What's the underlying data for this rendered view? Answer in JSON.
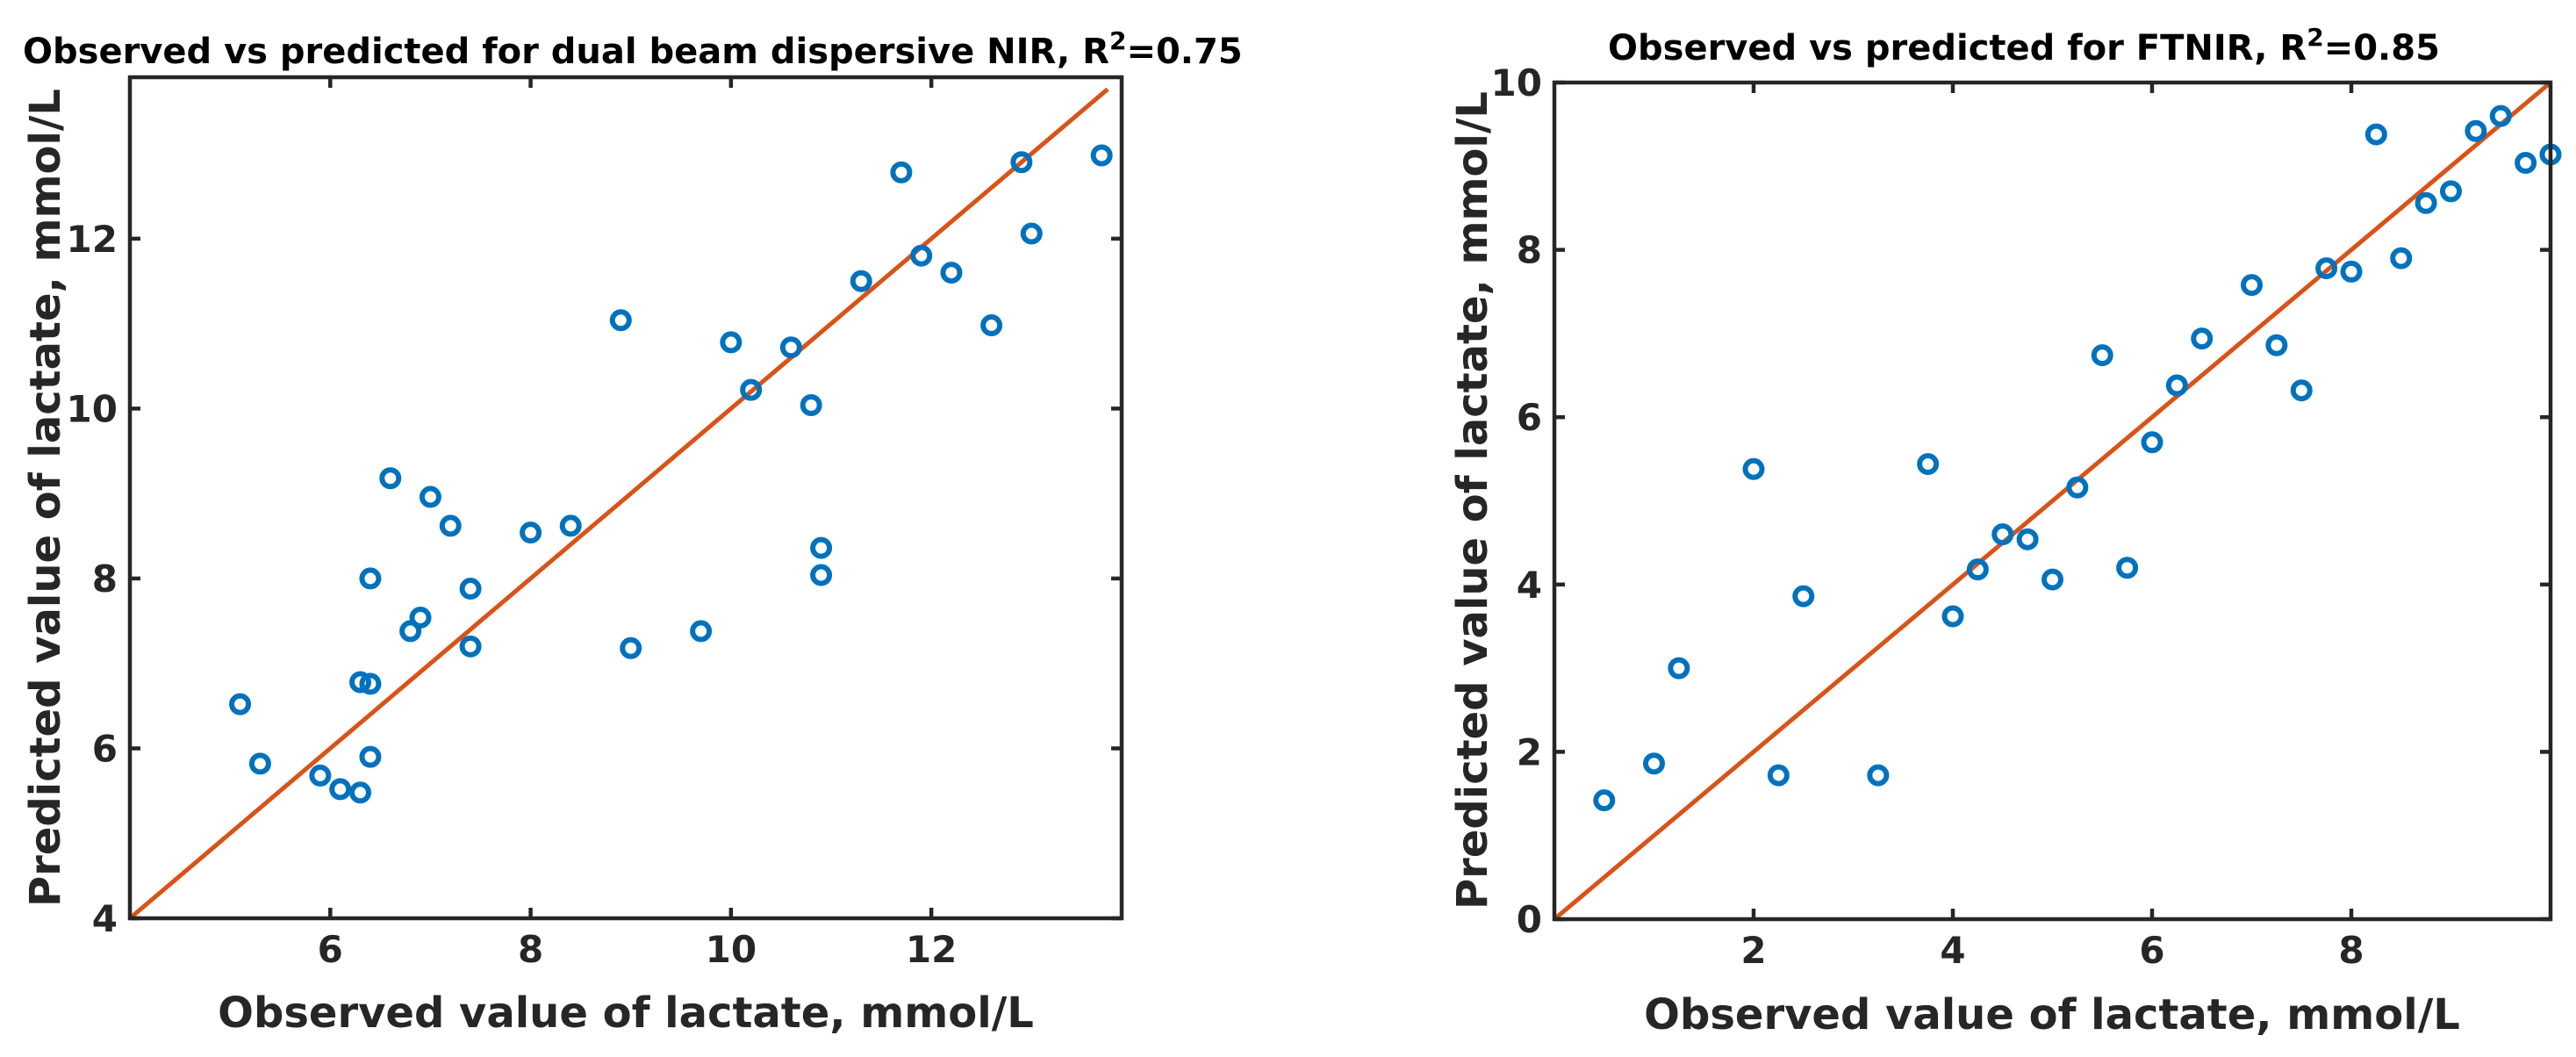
{
  "chart_data": [
    {
      "type": "scatter",
      "title_main": "Observed vs predicted for dual beam dispersive NIR,  R",
      "title_sup": "2",
      "title_tail": "=0.75",
      "xlabel": "Observed value of lactate, mmol/L",
      "ylabel": "Predicted value of lactate, mmol/L",
      "xlim": [
        4,
        13.9
      ],
      "ylim": [
        4,
        13.9
      ],
      "xticks": [
        6,
        8,
        10,
        12
      ],
      "yticks": [
        4,
        6,
        8,
        10,
        12
      ],
      "xtick_labels": [
        "6",
        "8",
        "10",
        "12"
      ],
      "ytick_labels": [
        "4",
        "6",
        "8",
        "10",
        "12"
      ],
      "line": {
        "x": [
          4,
          13.76
        ],
        "y": [
          4,
          13.76
        ]
      },
      "points": [
        {
          "x": 5.1,
          "y": 6.52
        },
        {
          "x": 5.3,
          "y": 5.82
        },
        {
          "x": 5.9,
          "y": 5.68
        },
        {
          "x": 6.1,
          "y": 5.52
        },
        {
          "x": 6.3,
          "y": 5.48
        },
        {
          "x": 6.4,
          "y": 5.9
        },
        {
          "x": 6.3,
          "y": 6.78
        },
        {
          "x": 6.4,
          "y": 6.76
        },
        {
          "x": 6.4,
          "y": 8.0
        },
        {
          "x": 6.6,
          "y": 9.18
        },
        {
          "x": 6.8,
          "y": 7.38
        },
        {
          "x": 6.9,
          "y": 7.54
        },
        {
          "x": 7.0,
          "y": 8.96
        },
        {
          "x": 7.2,
          "y": 8.62
        },
        {
          "x": 7.4,
          "y": 7.88
        },
        {
          "x": 7.4,
          "y": 7.2
        },
        {
          "x": 8.0,
          "y": 8.54
        },
        {
          "x": 8.4,
          "y": 8.62
        },
        {
          "x": 8.9,
          "y": 11.04
        },
        {
          "x": 9.0,
          "y": 7.18
        },
        {
          "x": 9.7,
          "y": 7.38
        },
        {
          "x": 10.0,
          "y": 10.78
        },
        {
          "x": 10.2,
          "y": 10.22
        },
        {
          "x": 10.6,
          "y": 10.72
        },
        {
          "x": 10.8,
          "y": 10.04
        },
        {
          "x": 10.9,
          "y": 8.36
        },
        {
          "x": 10.9,
          "y": 8.04
        },
        {
          "x": 11.3,
          "y": 11.5
        },
        {
          "x": 11.7,
          "y": 12.78
        },
        {
          "x": 11.9,
          "y": 11.8
        },
        {
          "x": 12.2,
          "y": 11.6
        },
        {
          "x": 12.6,
          "y": 10.98
        },
        {
          "x": 12.9,
          "y": 12.9
        },
        {
          "x": 13.0,
          "y": 12.06
        },
        {
          "x": 13.7,
          "y": 12.98
        }
      ]
    },
    {
      "type": "scatter",
      "title_main": "Observed vs predicted for FTNIR,  R",
      "title_sup": "2",
      "title_tail": "=0.85",
      "xlabel": "Observed value of lactate, mmol/L",
      "ylabel": "Predicted value of lactate, mmol/L",
      "xlim": [
        0,
        10
      ],
      "ylim": [
        0,
        10
      ],
      "xticks": [
        2,
        4,
        6,
        8
      ],
      "yticks": [
        0,
        2,
        4,
        6,
        8,
        10
      ],
      "xtick_labels": [
        "2",
        "4",
        "6",
        "8"
      ],
      "ytick_labels": [
        "0",
        "2",
        "4",
        "6",
        "8",
        "10"
      ],
      "line": {
        "x": [
          0,
          10
        ],
        "y": [
          0,
          10
        ]
      },
      "points": [
        {
          "x": 0.5,
          "y": 1.42
        },
        {
          "x": 1.0,
          "y": 1.86
        },
        {
          "x": 1.25,
          "y": 3.0
        },
        {
          "x": 2.0,
          "y": 5.38
        },
        {
          "x": 2.25,
          "y": 1.72
        },
        {
          "x": 2.5,
          "y": 3.86
        },
        {
          "x": 3.25,
          "y": 1.72
        },
        {
          "x": 3.75,
          "y": 5.44
        },
        {
          "x": 4.0,
          "y": 3.62
        },
        {
          "x": 4.25,
          "y": 4.18
        },
        {
          "x": 4.5,
          "y": 4.6
        },
        {
          "x": 4.75,
          "y": 4.54
        },
        {
          "x": 5.0,
          "y": 4.06
        },
        {
          "x": 5.25,
          "y": 5.16
        },
        {
          "x": 5.5,
          "y": 6.74
        },
        {
          "x": 5.75,
          "y": 4.2
        },
        {
          "x": 6.0,
          "y": 5.7
        },
        {
          "x": 6.25,
          "y": 6.38
        },
        {
          "x": 6.5,
          "y": 6.94
        },
        {
          "x": 7.0,
          "y": 7.58
        },
        {
          "x": 7.25,
          "y": 6.86
        },
        {
          "x": 7.5,
          "y": 6.32
        },
        {
          "x": 7.75,
          "y": 7.78
        },
        {
          "x": 8.0,
          "y": 7.74
        },
        {
          "x": 8.25,
          "y": 9.38
        },
        {
          "x": 8.5,
          "y": 7.9
        },
        {
          "x": 8.75,
          "y": 8.56
        },
        {
          "x": 9.0,
          "y": 8.7
        },
        {
          "x": 9.25,
          "y": 9.42
        },
        {
          "x": 9.5,
          "y": 9.6
        },
        {
          "x": 9.75,
          "y": 9.04
        },
        {
          "x": 10.0,
          "y": 9.14
        }
      ]
    }
  ],
  "colors": {
    "marker": "#0072BD",
    "line": "#D95319",
    "axis": "#262626"
  }
}
